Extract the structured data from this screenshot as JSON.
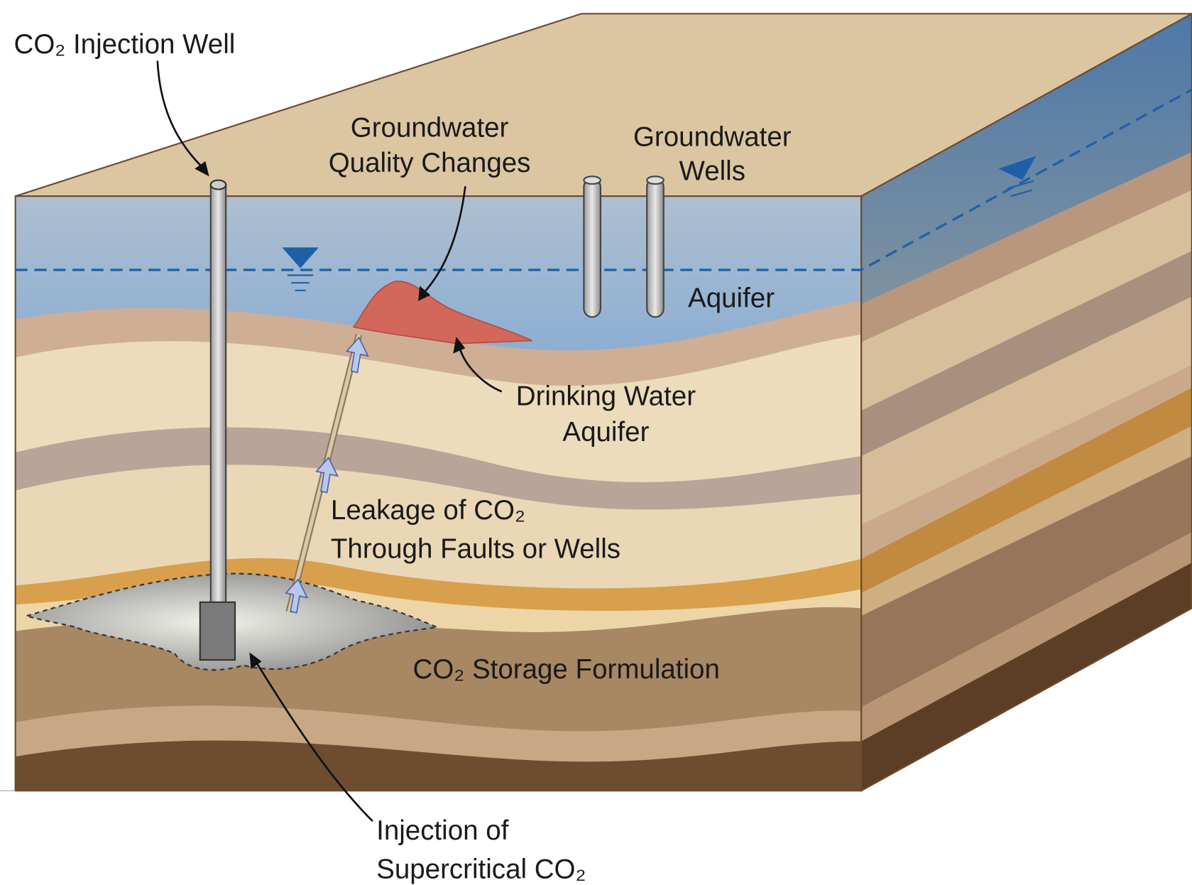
{
  "labels": {
    "injection_well": "CO₂ Injection Well",
    "quality_changes": {
      "lines": [
        "Groundwater",
        "Quality Changes"
      ]
    },
    "groundwater_wells": {
      "lines": [
        "Groundwater",
        "Wells"
      ]
    },
    "aquifer": "Aquifer",
    "drinking_water": {
      "lines": [
        "Drinking Water",
        "Aquifer"
      ]
    },
    "leakage": {
      "lines": [
        "Leakage of CO₂",
        "Through Faults or Wells"
      ]
    },
    "storage": "CO₂ Storage Formulation",
    "injection": {
      "lines": [
        "Injection of",
        "Supercritical CO₂"
      ]
    }
  }
}
